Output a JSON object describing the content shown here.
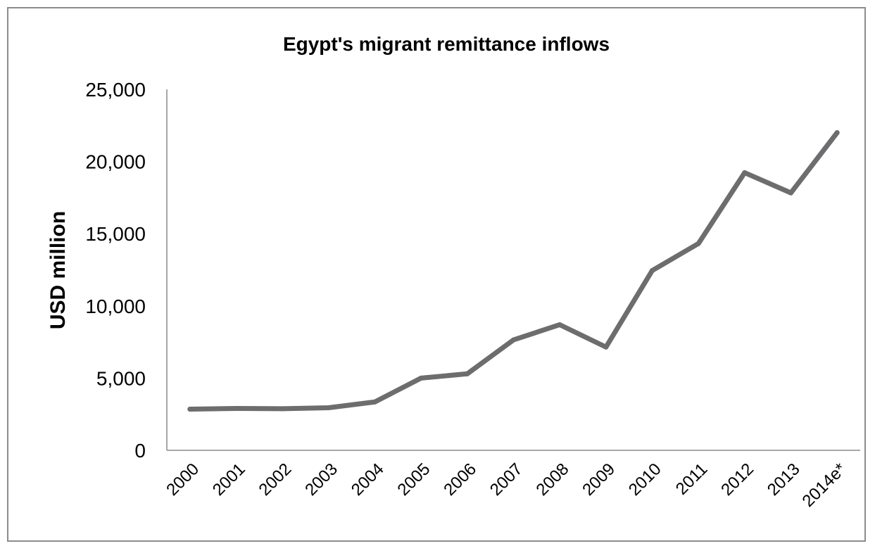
{
  "chart_data": {
    "type": "line",
    "title": "Egypt's migrant remittance inflows",
    "xlabel": "",
    "ylabel": "USD million",
    "categories": [
      "2000",
      "2001",
      "2002",
      "2003",
      "2004",
      "2005",
      "2006",
      "2007",
      "2008",
      "2009",
      "2010",
      "2011",
      "2012",
      "2013",
      "2014e*"
    ],
    "series": [
      {
        "values": [
          2850,
          2900,
          2880,
          2950,
          3350,
          5000,
          5300,
          7650,
          8700,
          7150,
          12450,
          14320,
          19230,
          17830,
          22000
        ],
        "color": "#6d6d6f"
      }
    ],
    "ylim": [
      0,
      25000
    ],
    "yticks": [
      0,
      5000,
      10000,
      15000,
      20000,
      25000
    ],
    "ytick_labels": [
      "0",
      "5,000",
      "10,000",
      "15,000",
      "20,000",
      "25,000"
    ],
    "grid": false,
    "legend": "none"
  }
}
